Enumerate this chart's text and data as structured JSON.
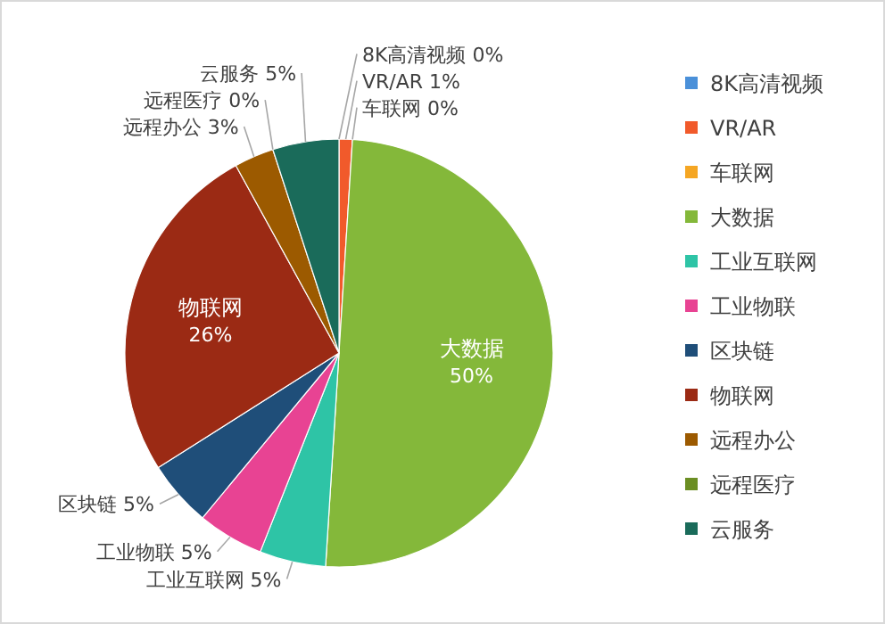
{
  "chart_data": {
    "type": "pie",
    "categories": [
      "8K高清视频",
      "VR/AR",
      "车联网",
      "大数据",
      "工业互联网",
      "工业物联",
      "区块链",
      "物联网",
      "远程办公",
      "远程医疗",
      "云服务"
    ],
    "values": [
      0,
      1,
      0,
      50,
      5,
      5,
      5,
      26,
      3,
      0,
      5
    ],
    "value_labels": [
      "0%",
      "1%",
      "0%",
      "50%",
      "5%",
      "5%",
      "5%",
      "26%",
      "3%",
      "0%",
      "5%"
    ],
    "colors": [
      "#4a90d9",
      "#f15a2b",
      "#f5a623",
      "#84b83a",
      "#2ec4a6",
      "#e84393",
      "#1f4e79",
      "#9b2a14",
      "#9c5a00",
      "#6b8e23",
      "#1a6b5a"
    ],
    "legend": "right"
  }
}
